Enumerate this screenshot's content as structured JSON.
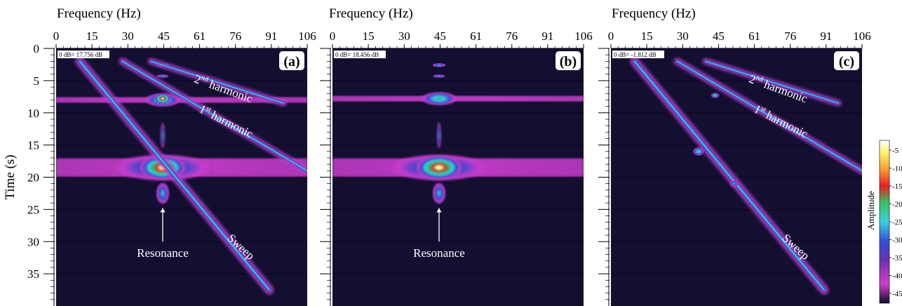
{
  "chart_data": [
    {
      "type": "heatmap",
      "panel_label": "(a)",
      "xlabel": "Frequency (Hz)",
      "ylabel": "Time (s)",
      "x_ticks": [
        "0",
        "15",
        "30",
        "45",
        "61",
        "76",
        "91",
        "106"
      ],
      "y_ticks": [
        "0",
        "5",
        "10",
        "15",
        "20",
        "25",
        "30",
        "35"
      ],
      "xlim": [
        0,
        106
      ],
      "ylim": [
        0,
        40
      ],
      "reference": "0 dB= 17.756 dB",
      "annotations": [
        "2nd harmonic",
        "1st harmonic",
        "Resonance",
        "Sweep"
      ],
      "features": {
        "sweep": [
          [
            10,
            2
          ],
          [
            90,
            37.5
          ]
        ],
        "first_harmonic": [
          [
            28,
            2
          ],
          [
            106,
            19
          ]
        ],
        "second_harmonic": [
          [
            40,
            2
          ],
          [
            96,
            8.5
          ]
        ],
        "resonance": {
          "freq": 45,
          "time": 18.5,
          "band": [
            0,
            106
          ]
        },
        "upper_band": {
          "time": 8,
          "band": [
            0,
            106
          ]
        }
      }
    },
    {
      "type": "heatmap",
      "panel_label": "(b)",
      "xlabel": "Frequency (Hz)",
      "x_ticks": [
        "0",
        "15",
        "30",
        "45",
        "61",
        "76",
        "91",
        "106"
      ],
      "y_ticks": [
        "0",
        "5",
        "10",
        "15",
        "20",
        "25",
        "30",
        "35"
      ],
      "xlim": [
        0,
        106
      ],
      "ylim": [
        0,
        40
      ],
      "reference": "0 dB= 18.456 dB",
      "annotations": [
        "Resonance"
      ],
      "features": {
        "resonance": {
          "freq": 45,
          "time": 18.5,
          "band": [
            0,
            106
          ]
        },
        "upper_band": {
          "time": 7.8,
          "band": [
            0,
            106
          ]
        }
      }
    },
    {
      "type": "heatmap",
      "panel_label": "(c)",
      "xlabel": "Frequency (Hz)",
      "x_ticks": [
        "0",
        "15",
        "30",
        "45",
        "61",
        "76",
        "91",
        "106"
      ],
      "y_ticks": [
        "0",
        "5",
        "10",
        "15",
        "20",
        "25",
        "30",
        "35"
      ],
      "xlim": [
        0,
        106
      ],
      "ylim": [
        0,
        40
      ],
      "reference": "0 dB= -1.812 dB",
      "annotations": [
        "2nd harmonic",
        "1st harmonic",
        "Sweep"
      ],
      "features": {
        "sweep": [
          [
            10,
            2
          ],
          [
            90,
            37.5
          ]
        ],
        "first_harmonic": [
          [
            28,
            2
          ],
          [
            106,
            19
          ]
        ],
        "second_harmonic": [
          [
            40,
            2
          ],
          [
            96,
            8.5
          ]
        ]
      }
    }
  ],
  "colorbar": {
    "label": "Amplitude",
    "ticks": [
      "-5",
      "-10",
      "-15",
      "-20",
      "-25",
      "-30",
      "-35",
      "-40",
      "-45"
    ],
    "colors": [
      "#ffffff",
      "#fff066",
      "#ff9933",
      "#e82020",
      "#38c060",
      "#39d0e0",
      "#3050d8",
      "#7030b0",
      "#d040c8",
      "#0f0c2e"
    ]
  },
  "colors": {
    "background": "#120f30",
    "magenta": "#c63ccc",
    "cyan": "#35cfe2",
    "green": "#2fb66a",
    "red": "#e02a2a",
    "yellow": "#fff07a"
  }
}
